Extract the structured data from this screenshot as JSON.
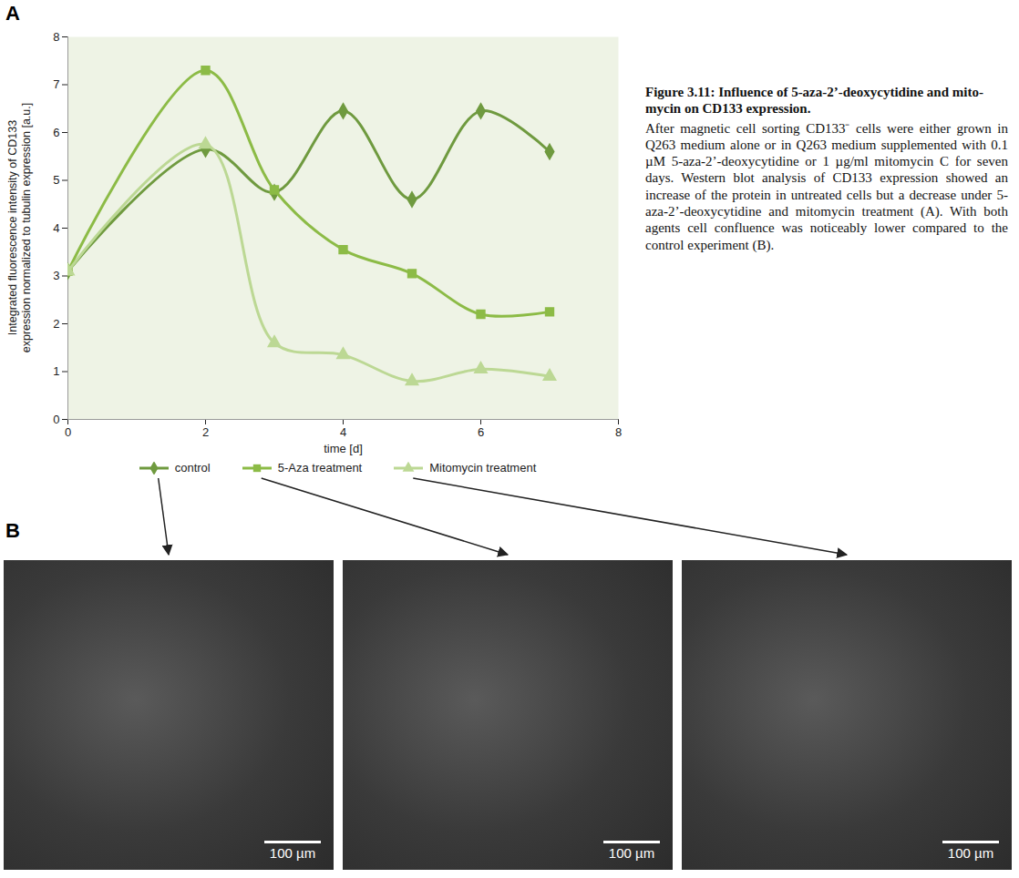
{
  "chart_data": {
    "type": "line",
    "panel": "A",
    "x_label": "time [d]",
    "y_label": "Integrated fluorescence intensity of CD133 expression normalized to tubulin expression [a.u.]",
    "x": [
      0,
      2,
      3,
      4,
      5,
      6,
      7
    ],
    "series": [
      {
        "name": "control",
        "color": "#6f9a3f",
        "marker": "diamond",
        "line_style": "smooth",
        "values": [
          3.1,
          5.65,
          4.75,
          6.45,
          4.6,
          6.45,
          5.6
        ]
      },
      {
        "name": "5-Aza treatment",
        "color": "#8cbb46",
        "marker": "square",
        "line_style": "smooth",
        "values": [
          3.1,
          7.3,
          4.8,
          3.55,
          3.05,
          2.2,
          2.25
        ]
      },
      {
        "name": "Mitomycin treatment",
        "color": "#bcd894",
        "marker": "triangle",
        "line_style": "smooth",
        "values": [
          3.1,
          5.75,
          1.6,
          1.35,
          0.8,
          1.05,
          0.9
        ]
      }
    ],
    "xlim": [
      0,
      8
    ],
    "xticks": [
      0,
      2,
      4,
      6,
      8
    ],
    "ylim": [
      0,
      8
    ],
    "yticks": [
      0,
      1,
      2,
      3,
      4,
      5,
      6,
      7,
      8
    ],
    "grid": false,
    "legend": "bottom"
  },
  "caption": {
    "title": "Figure 3.11: Influence of 5-aza-2’-deoxycytidine and mito-mycin on CD133 expression.",
    "text": "After magnetic cell sorting CD133⁻ cells were either grown in Q263 medium alone or in Q263 medium supplemented with 0.1 µM 5-aza-2’-deoxycytidine or 1 µg/ml mitomycin C for seven days. Western blot analysis of CD133 expression showed an increase of the protein in untreated cells but a decrease under 5-aza-2’-deoxycytidine and mitomycin treatment (A). With both agents cell confluence was noticeably lower compared to the control experiment (B)."
  },
  "panel_b": {
    "letter": "B",
    "images": [
      {
        "series": "control",
        "scale_bar": "100 µm"
      },
      {
        "series": "5-Aza treatment",
        "scale_bar": "100 µm"
      },
      {
        "series": "Mitomycin treatment",
        "scale_bar": "100 µm"
      }
    ]
  }
}
